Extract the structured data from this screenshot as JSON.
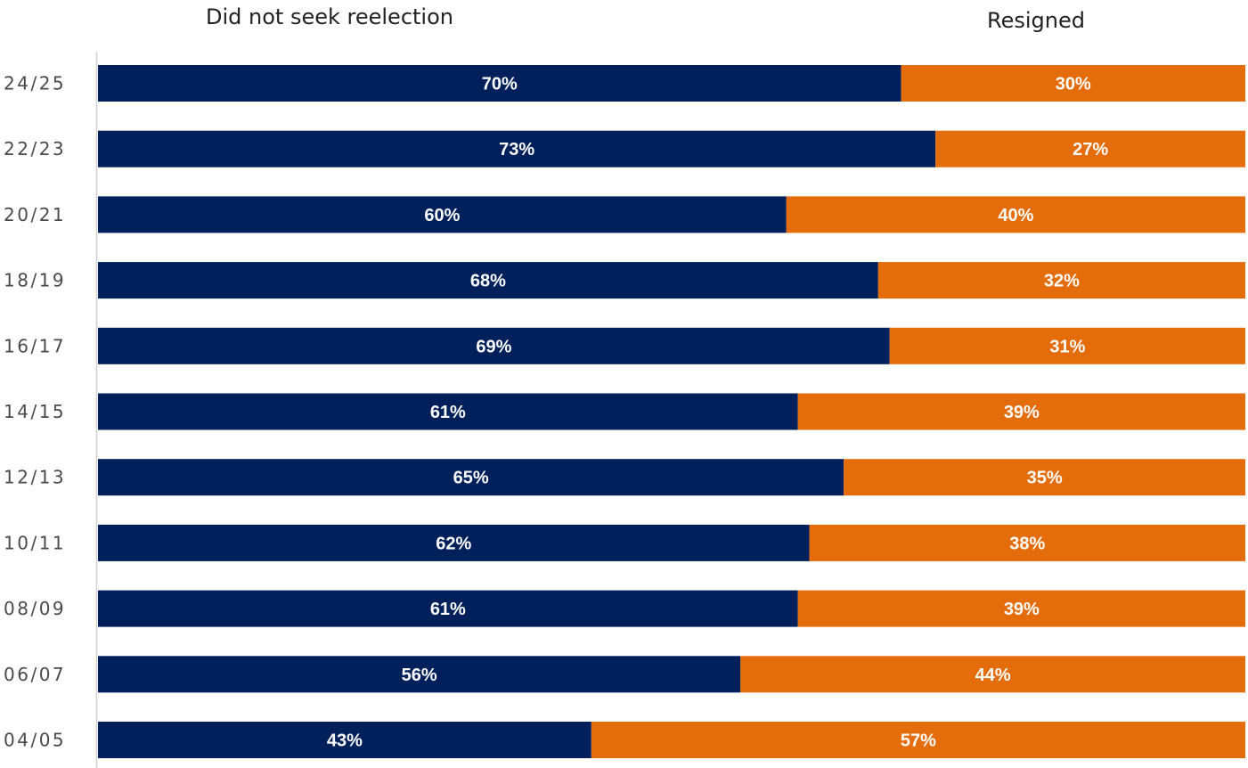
{
  "chart_data": {
    "type": "bar",
    "orientation": "horizontal",
    "stacked": true,
    "normalized_percent": true,
    "categories": [
      "24/25",
      "22/23",
      "20/21",
      "18/19",
      "16/17",
      "14/15",
      "12/13",
      "10/11",
      "08/09",
      "06/07",
      "04/05"
    ],
    "series": [
      {
        "name": "Did not seek reelection",
        "values": [
          70,
          73,
          60,
          68,
          69,
          61,
          65,
          62,
          61,
          56,
          43
        ],
        "labels": [
          "70%",
          "73%",
          "60%",
          "68%",
          "69%",
          "61%",
          "65%",
          "62%",
          "61%",
          "56%",
          "43%"
        ],
        "color": "#00205b"
      },
      {
        "name": "Resigned",
        "values": [
          30,
          27,
          40,
          32,
          31,
          39,
          35,
          38,
          39,
          44,
          57
        ],
        "labels": [
          "30%",
          "27%",
          "40%",
          "32%",
          "31%",
          "39%",
          "35%",
          "38%",
          "39%",
          "44%",
          "57%"
        ],
        "color": "#e46c0a"
      }
    ],
    "xlim": [
      0,
      100
    ],
    "legend_position": "top",
    "grid": false
  }
}
